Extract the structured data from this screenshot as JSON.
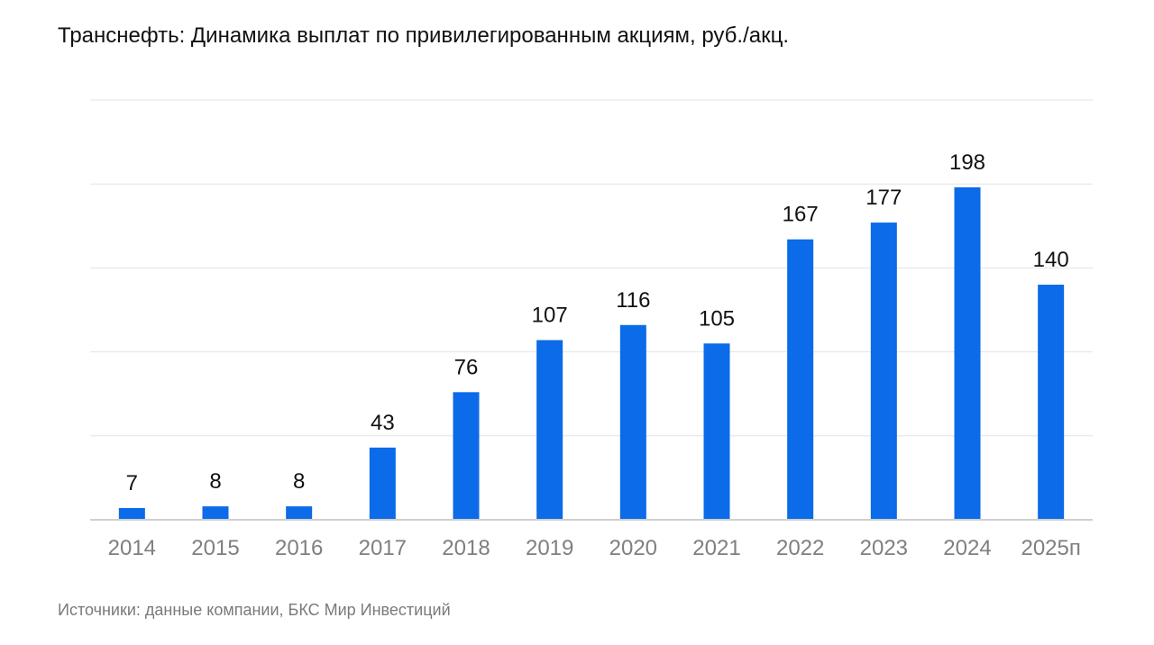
{
  "chart_data": {
    "type": "bar",
    "title": "Транснефть: Динамика выплат по привилегированным акциям, руб./акц.",
    "categories": [
      "2014",
      "2015",
      "2016",
      "2017",
      "2018",
      "2019",
      "2020",
      "2021",
      "2022",
      "2023",
      "2024",
      "2025п"
    ],
    "values": [
      7,
      8,
      8,
      43,
      76,
      107,
      116,
      105,
      167,
      177,
      198,
      140
    ],
    "xlabel": "",
    "ylabel": "",
    "ylim": [
      0,
      250
    ],
    "ytick_step": 50,
    "grid": true,
    "legend": "none",
    "bar_color": "#0b6be8",
    "grid_color": "#e3e3e3",
    "axis_color": "#cfcfcf",
    "label_color": "#111111",
    "tick_label_color": "#7f7f7f"
  },
  "source": {
    "text": "Источники: данные компании, БКС Мир Инвестиций"
  }
}
